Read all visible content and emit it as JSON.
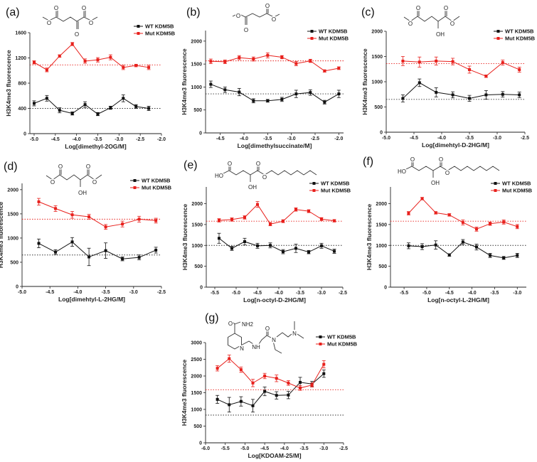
{
  "colors": {
    "wt": "#111111",
    "mut": "#e8201c",
    "mut_ref": "#e8201c",
    "wt_ref": "#333333"
  },
  "legend": {
    "wt": "WT KDM5B",
    "mut": "Mut KDM5B"
  },
  "chart_data": [
    {
      "id": "a",
      "type": "line",
      "panel_label": "(a)",
      "xlabel": "Log[dimethyl-2OG/M]",
      "ylabel": "H3K4me3 fluorescence",
      "xlim": [
        -5.1,
        -2.0
      ],
      "ylim": [
        0,
        1600
      ],
      "xticks": [
        -5.0,
        -4.5,
        -4.0,
        -3.5,
        -3.0,
        -2.5,
        -2.0
      ],
      "yticks": [
        0,
        400,
        800,
        1200,
        1600
      ],
      "x": [
        -5.0,
        -4.7,
        -4.4,
        -4.1,
        -3.8,
        -3.5,
        -3.2,
        -2.9,
        -2.6,
        -2.3
      ],
      "series": [
        {
          "name": "WT KDM5B",
          "values": [
            480,
            560,
            370,
            320,
            460,
            310,
            410,
            560,
            430,
            400
          ],
          "err": [
            40,
            45,
            40,
            25,
            45,
            25,
            25,
            55,
            30,
            35
          ],
          "reference": 400
        },
        {
          "name": "Mut KDM5B",
          "values": [
            1130,
            1010,
            1230,
            1420,
            1150,
            1170,
            1210,
            1050,
            1080,
            1050
          ],
          "err": [
            25,
            30,
            20,
            25,
            35,
            35,
            40,
            35,
            20,
            35
          ],
          "reference": 1090
        }
      ],
      "structure_labels": [
        "O",
        "O",
        "O",
        "O",
        "O"
      ]
    },
    {
      "id": "b",
      "type": "line",
      "panel_label": "(b)",
      "xlabel": "Log[dimethylsuccinate/M]",
      "ylabel": "H3K4me3 fluorescence",
      "xlim": [
        -4.81,
        -1.9
      ],
      "ylim": [
        0,
        2230
      ],
      "xticks": [
        -4.5,
        -4.0,
        -3.5,
        -3.0,
        -2.5,
        -2.0
      ],
      "yticks": [
        0,
        500,
        1000,
        1500,
        2000
      ],
      "x": [
        -4.7,
        -4.4,
        -4.1,
        -3.8,
        -3.5,
        -3.2,
        -2.9,
        -2.6,
        -2.3,
        -2.0
      ],
      "series": [
        {
          "name": "WT KDM5B",
          "values": [
            1060,
            940,
            890,
            700,
            700,
            730,
            850,
            880,
            670,
            850
          ],
          "err": [
            70,
            60,
            80,
            45,
            30,
            45,
            80,
            60,
            40,
            80
          ],
          "reference": 850
        },
        {
          "name": "Mut KDM5B",
          "values": [
            1560,
            1550,
            1640,
            1610,
            1690,
            1650,
            1510,
            1570,
            1350,
            1410
          ],
          "err": [
            50,
            40,
            45,
            45,
            55,
            35,
            45,
            35,
            25,
            30
          ],
          "reference": 1570
        }
      ],
      "structure_labels": [
        "O",
        "O",
        "O",
        "O"
      ]
    },
    {
      "id": "c",
      "type": "line",
      "panel_label": "(c)",
      "xlabel": "Log[dimehtyl-D-2HG/M]",
      "ylabel": "H3K4me3 fluorescence",
      "xlim": [
        -5.0,
        -2.5
      ],
      "ylim": [
        0,
        2000
      ],
      "xticks": [
        -5.0,
        -4.5,
        -4.0,
        -3.5,
        -3.0,
        -2.5
      ],
      "yticks": [
        0,
        500,
        1000,
        1500,
        2000
      ],
      "x": [
        -4.7,
        -4.4,
        -4.1,
        -3.8,
        -3.5,
        -3.2,
        -2.9,
        -2.6
      ],
      "series": [
        {
          "name": "WT KDM5B",
          "values": [
            670,
            980,
            790,
            740,
            670,
            740,
            750,
            740
          ],
          "err": [
            70,
            75,
            90,
            60,
            60,
            85,
            55,
            55
          ],
          "reference": 650
        },
        {
          "name": "Mut KDM5B",
          "values": [
            1410,
            1390,
            1410,
            1400,
            1240,
            1110,
            1380,
            1240
          ],
          "err": [
            90,
            100,
            80,
            65,
            70,
            25,
            50,
            50
          ],
          "reference": 1360
        }
      ],
      "structure_labels": [
        "O",
        "O",
        "O",
        "O",
        "OH"
      ]
    },
    {
      "id": "d",
      "type": "line",
      "panel_label": "(d)",
      "xlabel": "Log[dimehtyl-L-2HG/M]",
      "ylabel": "H3K4me3 fluorescence",
      "xlim": [
        -5.0,
        -2.5
      ],
      "ylim": [
        0,
        2130
      ],
      "xticks": [
        -5.0,
        -4.5,
        -4.0,
        -3.5,
        -3.0,
        -2.5
      ],
      "yticks": [
        0,
        500,
        1000,
        1500,
        2000
      ],
      "x": [
        -4.7,
        -4.4,
        -4.1,
        -3.8,
        -3.5,
        -3.2,
        -2.9,
        -2.6
      ],
      "series": [
        {
          "name": "WT KDM5B",
          "values": [
            890,
            710,
            920,
            610,
            740,
            570,
            600,
            750
          ],
          "err": [
            90,
            50,
            90,
            180,
            160,
            40,
            50,
            60
          ],
          "reference": 650
        },
        {
          "name": "Mut KDM5B",
          "values": [
            1750,
            1610,
            1480,
            1440,
            1230,
            1290,
            1390,
            1360
          ],
          "err": [
            70,
            60,
            70,
            50,
            50,
            60,
            60,
            50
          ],
          "reference": 1390
        }
      ],
      "structure_labels": [
        "O",
        "O",
        "O",
        "O",
        "OH"
      ]
    },
    {
      "id": "e",
      "type": "line",
      "panel_label": "(e)",
      "xlabel": "Log[n-octyl-D-2HG/M]",
      "ylabel": "H3K4me3 fluorescence",
      "xlim": [
        -5.7,
        -2.5
      ],
      "ylim": [
        0,
        2400
      ],
      "xticks": [
        -5.5,
        -5.0,
        -4.5,
        -4.0,
        -3.5,
        -3.0,
        -2.5
      ],
      "yticks": [
        0,
        500,
        1000,
        1500,
        2000
      ],
      "x": [
        -5.4,
        -5.1,
        -4.8,
        -4.5,
        -4.2,
        -3.9,
        -3.6,
        -3.3,
        -3.0,
        -2.7
      ],
      "series": [
        {
          "name": "WT KDM5B",
          "values": [
            1170,
            930,
            1090,
            990,
            1000,
            850,
            930,
            840,
            990,
            860
          ],
          "err": [
            120,
            50,
            80,
            60,
            60,
            50,
            100,
            40,
            60,
            50
          ],
          "reference": 1000
        },
        {
          "name": "Mut KDM5B",
          "values": [
            1600,
            1620,
            1670,
            1980,
            1510,
            1580,
            1860,
            1820,
            1630,
            1590
          ],
          "err": [
            40,
            40,
            40,
            70,
            40,
            35,
            40,
            35,
            35,
            30
          ],
          "reference": 1580
        }
      ],
      "structure_labels": [
        "HO",
        "O",
        "OH",
        "O",
        "O"
      ]
    },
    {
      "id": "f",
      "type": "line",
      "panel_label": "(f)",
      "xlabel": "Log[n-octyl-L-2HG/M]",
      "ylabel": "H3K4me3 fluorescence",
      "xlim": [
        -5.8,
        -2.8
      ],
      "ylim": [
        0,
        2400
      ],
      "xticks": [
        -5.5,
        -5.0,
        -4.5,
        -4.0,
        -3.5,
        -3.0
      ],
      "yticks": [
        0,
        500,
        1000,
        1500,
        2000
      ],
      "x": [
        -5.4,
        -5.1,
        -4.8,
        -4.5,
        -4.2,
        -3.9,
        -3.6,
        -3.3,
        -3.0
      ],
      "series": [
        {
          "name": "WT KDM5B",
          "values": [
            990,
            970,
            1010,
            770,
            1080,
            960,
            760,
            700,
            760
          ],
          "err": [
            70,
            70,
            100,
            30,
            60,
            70,
            50,
            35,
            50
          ],
          "reference": 1000
        },
        {
          "name": "Mut KDM5B",
          "values": [
            1770,
            2120,
            1780,
            1730,
            1550,
            1390,
            1520,
            1560,
            1450
          ],
          "err": [
            40,
            30,
            30,
            30,
            60,
            50,
            40,
            50,
            50
          ],
          "reference": 1580
        }
      ],
      "structure_labels": [
        "HO",
        "O",
        "OH",
        "O",
        "O"
      ]
    },
    {
      "id": "g",
      "type": "line",
      "panel_label": "(g)",
      "xlabel": "Log[KDOAM-25/M]",
      "ylabel": "H3K4me3 fluorescence",
      "xlim": [
        -6.0,
        -2.5
      ],
      "ylim": [
        0,
        3000
      ],
      "xticks": [
        -6.0,
        -5.5,
        -5.0,
        -4.5,
        -4.0,
        -3.5,
        -3.0,
        -2.5
      ],
      "yticks": [
        0,
        500,
        1000,
        1500,
        2000,
        2500,
        3000
      ],
      "x": [
        -5.7,
        -5.4,
        -5.1,
        -4.8,
        -4.5,
        -4.2,
        -3.9,
        -3.6,
        -3.3,
        -3.0
      ],
      "series": [
        {
          "name": "WT KDM5B",
          "values": [
            1300,
            1140,
            1240,
            1110,
            1540,
            1420,
            1430,
            1810,
            1760,
            2070
          ],
          "err": [
            120,
            220,
            140,
            190,
            130,
            110,
            110,
            150,
            80,
            110
          ],
          "reference": 830
        },
        {
          "name": "Mut KDM5B",
          "values": [
            2230,
            2520,
            2190,
            1790,
            2000,
            1930,
            1790,
            1640,
            1730,
            2350
          ],
          "err": [
            80,
            110,
            80,
            110,
            80,
            100,
            70,
            70,
            60,
            110
          ],
          "reference": 1590
        }
      ],
      "structure_labels": [
        "O",
        "NH2",
        "N",
        "NH",
        "O",
        "N",
        "N"
      ]
    }
  ]
}
